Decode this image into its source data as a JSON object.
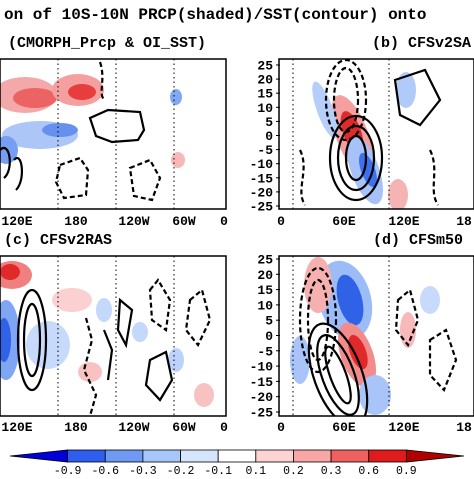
{
  "title": "on of 10S-10N PRCP(shaded)/SST(contour) onto",
  "chart_data": {
    "type": "heatmap",
    "title": "on of 10S-10N PRCP(shaded)/SST(contour) onto",
    "colorbar": {
      "ticks": [
        "-0.9",
        "-0.6",
        "-0.3",
        "-0.2",
        "-0.1",
        "0.1",
        "0.2",
        "0.3",
        "0.6",
        "0.9"
      ],
      "levels": [
        -0.9,
        -0.6,
        -0.3,
        -0.2,
        -0.1,
        0.1,
        0.2,
        0.3,
        0.6,
        0.9
      ],
      "colors": [
        "#0000dc",
        "#2e5ef0",
        "#6e9af4",
        "#a8c6fa",
        "#d5e5fd",
        "#ffffff",
        "#fdd3d3",
        "#f8a6a6",
        "#f06060",
        "#e01b1b",
        "#b00000"
      ]
    },
    "colors": {
      "positive": "#e83030",
      "negative": "#2f6ef0",
      "contour": "#000000"
    },
    "panels": [
      {
        "label": "(CMORPH_Prcp & OI_SST)",
        "xticks": [
          "120E",
          "180",
          "120W",
          "60W",
          "0"
        ],
        "yticks": []
      },
      {
        "label": "(b) CFSv2SA",
        "xticks": [
          "0",
          "60E",
          "120E",
          "18"
        ],
        "yticks": [
          "25",
          "20",
          "15",
          "10",
          "5",
          "0",
          "-5",
          "-10",
          "-15",
          "-20",
          "-25"
        ],
        "ylim": [
          -25,
          25
        ]
      },
      {
        "label": "(c) CFSv2RAS",
        "xticks": [
          "120E",
          "180",
          "120W",
          "60W",
          "0"
        ],
        "yticks": []
      },
      {
        "label": "(d) CFSm50",
        "xticks": [
          "0",
          "60E",
          "120E",
          "18"
        ],
        "yticks": [
          "25",
          "20",
          "15",
          "10",
          "5",
          "0",
          "-5",
          "-10",
          "-15",
          "-20",
          "-25"
        ],
        "ylim": [
          -25,
          25
        ]
      }
    ]
  }
}
